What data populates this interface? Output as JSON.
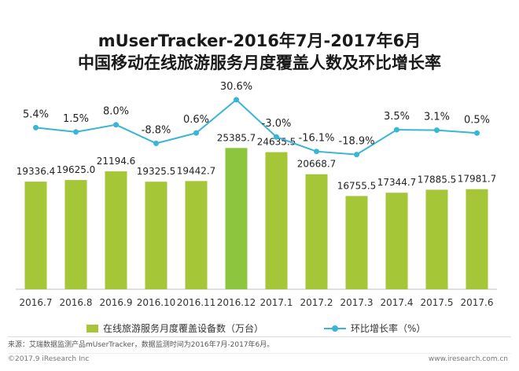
{
  "title_line1": "mUserTracker-2016年7月-2017年6月",
  "title_line2": "中国移动在线旅游服务月度覆盖人数及环比增长率",
  "chart_data": {
    "type": "bar",
    "categories": [
      "2016.7",
      "2016.8",
      "2016.9",
      "2016.10",
      "2016.11",
      "2016.12",
      "2017.1",
      "2017.2",
      "2017.3",
      "2017.4",
      "2017.5",
      "2017.6"
    ],
    "series": [
      {
        "name": "在线旅游服务月度覆盖设备数（万台）",
        "type": "bar",
        "values": [
          19336.4,
          19625.0,
          21194.6,
          19325.5,
          19442.7,
          25385.7,
          24635.5,
          20668.7,
          16755.5,
          17344.7,
          17885.5,
          17981.7
        ],
        "labels": [
          "19336.4",
          "19625.0",
          "21194.6",
          "19325.5",
          "19442.7",
          "25385.7",
          "24635.5",
          "20668.7",
          "16755.5",
          "17344.7",
          "17885.5",
          "17981.7"
        ],
        "color": "#a4c637",
        "highlight_color": "#8cc63f",
        "highlight_index": 5
      },
      {
        "name": "环比增长率（%）",
        "type": "line",
        "values": [
          5.4,
          1.5,
          8.0,
          -8.8,
          0.6,
          30.6,
          -3.0,
          -16.1,
          -18.9,
          3.5,
          3.1,
          0.5
        ],
        "labels": [
          "5.4%",
          "1.5%",
          "8.0%",
          "-8.8%",
          "0.6%",
          "30.6%",
          "-3.0%",
          "-16.1%",
          "-18.9%",
          "3.5%",
          "3.1%",
          "0.5%"
        ],
        "color": "#3ab5d5"
      }
    ],
    "axis_label_color": "#333333",
    "legend_position": "bottom",
    "grid": false
  },
  "source_text": "来源：艾瑞数据监测产品mUserTracker，数据监测时间为2016年7月-2017年6月。",
  "copyright": "©2017.9 iResearch Inc",
  "website": "www.iresearch.com.cn"
}
